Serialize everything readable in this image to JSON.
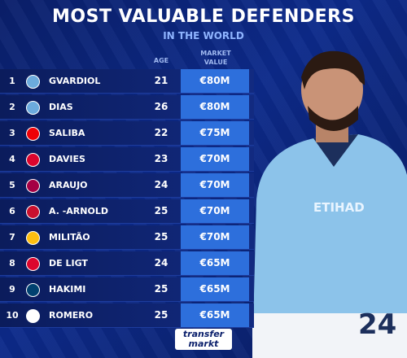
{
  "header": {
    "title": "MOST VALUABLE DEFENDERS",
    "subtitle": "IN THE WORLD"
  },
  "table": {
    "columns": [
      "AGE",
      "MARKET VALUE"
    ],
    "rows": [
      [
        1,
        "GVARDIOL",
        21,
        "€80M"
      ],
      [
        2,
        "DIAS",
        26,
        "€80M"
      ],
      [
        3,
        "SALIBA",
        22,
        "€75M"
      ],
      [
        4,
        "DAVIES",
        23,
        "€70M"
      ],
      [
        5,
        "ARAUJO",
        24,
        "€70M"
      ],
      [
        6,
        "A. -ARNOLD",
        25,
        "€70M"
      ],
      [
        7,
        "MILITÃO",
        25,
        "€70M"
      ],
      [
        8,
        "DE LIGT",
        24,
        "€65M"
      ],
      [
        9,
        "HAKIMI",
        25,
        "€65M"
      ],
      [
        10,
        "ROMERO",
        25,
        "€65M"
      ]
    ]
  },
  "footer": {
    "logo_top": "transfer",
    "logo_bottom": "markt"
  }
}
